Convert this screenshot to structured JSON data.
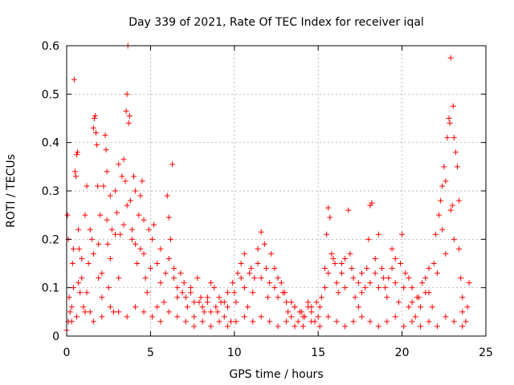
{
  "chart_data": {
    "type": "scatter",
    "title": "Day 339 of 2021, Rate Of TEC Index for receiver iqal",
    "xlabel": "GPS time / hours",
    "ylabel": "ROTI / TECUs",
    "xlim": [
      0,
      25
    ],
    "ylim": [
      0,
      0.6
    ],
    "x_ticks": [
      0,
      5,
      10,
      15,
      20,
      25
    ],
    "y_ticks": [
      0,
      0.1,
      0.2,
      0.3,
      0.4,
      0.5,
      0.6
    ],
    "x_tick_labels": [
      "0",
      "5",
      "10",
      "15",
      "20",
      "25"
    ],
    "y_tick_labels": [
      "0",
      "0.1",
      "0.2",
      "0.3",
      "0.4",
      "0.5",
      "0.6"
    ],
    "grid": true,
    "marker": "plus",
    "color": "#ff0000",
    "series": [
      {
        "points": [
          [
            0.0,
            0.012
          ],
          [
            0.05,
            0.25
          ],
          [
            0.1,
            0.2
          ],
          [
            0.15,
            0.08
          ],
          [
            0.2,
            0.05
          ],
          [
            0.3,
            0.03
          ],
          [
            0.35,
            0.15
          ],
          [
            0.4,
            0.1
          ],
          [
            0.45,
            0.53
          ],
          [
            0.5,
            0.34
          ],
          [
            0.55,
            0.33
          ],
          [
            0.6,
            0.375
          ],
          [
            0.65,
            0.38
          ],
          [
            0.7,
            0.22
          ],
          [
            0.75,
            0.18
          ],
          [
            0.8,
            0.09
          ],
          [
            0.9,
            0.12
          ],
          [
            1.0,
            0.06
          ],
          [
            1.1,
            0.25
          ],
          [
            1.2,
            0.31
          ],
          [
            1.3,
            0.15
          ],
          [
            1.4,
            0.05
          ],
          [
            1.5,
            0.2
          ],
          [
            1.6,
            0.43
          ],
          [
            1.65,
            0.45
          ],
          [
            1.7,
            0.455
          ],
          [
            1.75,
            0.42
          ],
          [
            1.8,
            0.395
          ],
          [
            1.85,
            0.31
          ],
          [
            1.9,
            0.12
          ],
          [
            2.0,
            0.25
          ],
          [
            2.1,
            0.08
          ],
          [
            2.2,
            0.31
          ],
          [
            2.3,
            0.415
          ],
          [
            2.35,
            0.385
          ],
          [
            2.4,
            0.34
          ],
          [
            2.45,
            0.19
          ],
          [
            2.5,
            0.1
          ],
          [
            2.6,
            0.29
          ],
          [
            2.7,
            0.22
          ],
          [
            2.8,
            0.05
          ],
          [
            2.9,
            0.3
          ],
          [
            3.0,
            0.255
          ],
          [
            3.1,
            0.355
          ],
          [
            3.2,
            0.21
          ],
          [
            3.3,
            0.33
          ],
          [
            3.4,
            0.365
          ],
          [
            3.5,
            0.32
          ],
          [
            3.55,
            0.465
          ],
          [
            3.6,
            0.5
          ],
          [
            3.65,
            0.6
          ],
          [
            3.7,
            0.44
          ],
          [
            3.75,
            0.455
          ],
          [
            3.8,
            0.28
          ],
          [
            3.9,
            0.22
          ],
          [
            4.0,
            0.33
          ],
          [
            4.1,
            0.3
          ],
          [
            4.2,
            0.15
          ],
          [
            4.3,
            0.25
          ],
          [
            4.4,
            0.29
          ],
          [
            4.5,
            0.32
          ],
          [
            4.6,
            0.17
          ],
          [
            4.7,
            0.12
          ],
          [
            4.8,
            0.09
          ],
          [
            5.0,
            0.14
          ],
          [
            5.2,
            0.23
          ],
          [
            5.4,
            0.06
          ],
          [
            5.6,
            0.18
          ],
          [
            5.8,
            0.07
          ],
          [
            6.0,
            0.29
          ],
          [
            6.1,
            0.245
          ],
          [
            6.2,
            0.2
          ],
          [
            6.3,
            0.355
          ],
          [
            6.4,
            0.12
          ],
          [
            6.6,
            0.08
          ],
          [
            6.8,
            0.13
          ],
          [
            7.0,
            0.11
          ],
          [
            7.2,
            0.06
          ],
          [
            7.4,
            0.09
          ],
          [
            7.6,
            0.04
          ],
          [
            7.8,
            0.12
          ],
          [
            8.0,
            0.08
          ],
          [
            8.2,
            0.05
          ],
          [
            8.4,
            0.07
          ],
          [
            8.6,
            0.11
          ],
          [
            8.8,
            0.1
          ],
          [
            9.0,
            0.05
          ],
          [
            9.2,
            0.07
          ],
          [
            9.4,
            0.04
          ],
          [
            9.6,
            0.06
          ],
          [
            9.8,
            0.03
          ],
          [
            10.0,
            0.09
          ],
          [
            10.2,
            0.13
          ],
          [
            10.4,
            0.15
          ],
          [
            10.6,
            0.17
          ],
          [
            10.8,
            0.06
          ],
          [
            11.0,
            0.14
          ],
          [
            11.2,
            0.12
          ],
          [
            11.4,
            0.18
          ],
          [
            11.6,
            0.215
          ],
          [
            11.8,
            0.19
          ],
          [
            12.0,
            0.08
          ],
          [
            12.2,
            0.17
          ],
          [
            12.4,
            0.14
          ],
          [
            12.6,
            0.12
          ],
          [
            12.8,
            0.11
          ],
          [
            13.0,
            0.09
          ],
          [
            13.2,
            0.05
          ],
          [
            13.4,
            0.04
          ],
          [
            13.6,
            0.06
          ],
          [
            13.8,
            0.03
          ],
          [
            14.0,
            0.05
          ],
          [
            14.2,
            0.04
          ],
          [
            14.4,
            0.07
          ],
          [
            14.6,
            0.06
          ],
          [
            14.8,
            0.03
          ],
          [
            15.0,
            0.04
          ],
          [
            15.2,
            0.08
          ],
          [
            15.4,
            0.1
          ],
          [
            15.5,
            0.21
          ],
          [
            15.6,
            0.265
          ],
          [
            15.7,
            0.245
          ],
          [
            15.8,
            0.17
          ],
          [
            16.0,
            0.15
          ],
          [
            16.2,
            0.09
          ],
          [
            16.4,
            0.13
          ],
          [
            16.6,
            0.16
          ],
          [
            16.8,
            0.26
          ],
          [
            17.0,
            0.14
          ],
          [
            17.2,
            0.08
          ],
          [
            17.4,
            0.06
          ],
          [
            17.6,
            0.13
          ],
          [
            17.8,
            0.1
          ],
          [
            18.0,
            0.2
          ],
          [
            18.1,
            0.27
          ],
          [
            18.2,
            0.275
          ],
          [
            18.4,
            0.16
          ],
          [
            18.6,
            0.21
          ],
          [
            18.8,
            0.14
          ],
          [
            19.0,
            0.1
          ],
          [
            19.2,
            0.12
          ],
          [
            19.4,
            0.18
          ],
          [
            19.6,
            0.16
          ],
          [
            19.8,
            0.07
          ],
          [
            20.0,
            0.21
          ],
          [
            20.2,
            0.13
          ],
          [
            20.4,
            0.06
          ],
          [
            20.6,
            0.1
          ],
          [
            20.8,
            0.04
          ],
          [
            21.0,
            0.08
          ],
          [
            21.2,
            0.11
          ],
          [
            21.4,
            0.12
          ],
          [
            21.6,
            0.14
          ],
          [
            21.8,
            0.06
          ],
          [
            22.0,
            0.21
          ],
          [
            22.2,
            0.25
          ],
          [
            22.3,
            0.28
          ],
          [
            22.4,
            0.31
          ],
          [
            22.5,
            0.35
          ],
          [
            22.6,
            0.32
          ],
          [
            22.7,
            0.41
          ],
          [
            22.8,
            0.45
          ],
          [
            22.85,
            0.44
          ],
          [
            22.9,
            0.575
          ],
          [
            23.0,
            0.27
          ],
          [
            23.05,
            0.475
          ],
          [
            23.1,
            0.41
          ],
          [
            23.2,
            0.38
          ],
          [
            23.3,
            0.35
          ],
          [
            23.4,
            0.28
          ],
          [
            23.5,
            0.12
          ],
          [
            23.6,
            0.05
          ],
          [
            23.8,
            0.03
          ],
          [
            24.0,
            0.11
          ],
          [
            0.3,
            0.06
          ],
          [
            0.7,
            0.11
          ],
          [
            1.2,
            0.09
          ],
          [
            1.6,
            0.17
          ],
          [
            2.1,
            0.13
          ],
          [
            2.6,
            0.16
          ],
          [
            3.1,
            0.12
          ],
          [
            3.6,
            0.27
          ],
          [
            4.1,
            0.19
          ],
          [
            4.6,
            0.24
          ],
          [
            5.1,
            0.2
          ],
          [
            5.6,
            0.11
          ],
          [
            6.1,
            0.16
          ],
          [
            6.6,
            0.1
          ],
          [
            7.1,
            0.08
          ],
          [
            7.6,
            0.07
          ],
          [
            8.1,
            0.06
          ],
          [
            8.6,
            0.05
          ],
          [
            9.1,
            0.08
          ],
          [
            9.6,
            0.09
          ],
          [
            10.1,
            0.07
          ],
          [
            10.6,
            0.1
          ],
          [
            11.1,
            0.09
          ],
          [
            11.6,
            0.12
          ],
          [
            12.1,
            0.11
          ],
          [
            12.6,
            0.08
          ],
          [
            13.1,
            0.07
          ],
          [
            13.6,
            0.06
          ],
          [
            14.1,
            0.04
          ],
          [
            14.6,
            0.05
          ],
          [
            15.1,
            0.06
          ],
          [
            15.6,
            0.13
          ],
          [
            16.1,
            0.11
          ],
          [
            16.6,
            0.1
          ],
          [
            17.1,
            0.12
          ],
          [
            17.6,
            0.09
          ],
          [
            18.1,
            0.11
          ],
          [
            18.6,
            0.1
          ],
          [
            19.1,
            0.08
          ],
          [
            19.6,
            0.11
          ],
          [
            20.1,
            0.1
          ],
          [
            20.6,
            0.07
          ],
          [
            21.1,
            0.06
          ],
          [
            21.6,
            0.09
          ],
          [
            22.1,
            0.13
          ],
          [
            22.6,
            0.17
          ],
          [
            23.1,
            0.2
          ],
          [
            23.6,
            0.08
          ],
          [
            0.1,
            0.03
          ],
          [
            0.6,
            0.04
          ],
          [
            1.1,
            0.05
          ],
          [
            1.6,
            0.03
          ],
          [
            2.1,
            0.04
          ],
          [
            2.6,
            0.06
          ],
          [
            3.1,
            0.05
          ],
          [
            3.6,
            0.04
          ],
          [
            4.1,
            0.06
          ],
          [
            4.6,
            0.05
          ],
          [
            5.1,
            0.04
          ],
          [
            5.6,
            0.03
          ],
          [
            6.1,
            0.05
          ],
          [
            6.6,
            0.04
          ],
          [
            7.1,
            0.03
          ],
          [
            7.6,
            0.02
          ],
          [
            8.1,
            0.03
          ],
          [
            8.6,
            0.02
          ],
          [
            9.1,
            0.03
          ],
          [
            9.6,
            0.02
          ],
          [
            10.1,
            0.03
          ],
          [
            10.6,
            0.04
          ],
          [
            11.1,
            0.03
          ],
          [
            11.6,
            0.04
          ],
          [
            12.1,
            0.03
          ],
          [
            12.6,
            0.02
          ],
          [
            13.1,
            0.03
          ],
          [
            13.6,
            0.02
          ],
          [
            14.1,
            0.02
          ],
          [
            14.6,
            0.03
          ],
          [
            15.1,
            0.02
          ],
          [
            15.6,
            0.04
          ],
          [
            16.1,
            0.03
          ],
          [
            16.6,
            0.02
          ],
          [
            17.1,
            0.03
          ],
          [
            17.6,
            0.04
          ],
          [
            18.1,
            0.03
          ],
          [
            18.6,
            0.02
          ],
          [
            19.1,
            0.03
          ],
          [
            19.6,
            0.04
          ],
          [
            20.1,
            0.02
          ],
          [
            20.6,
            0.03
          ],
          [
            21.1,
            0.02
          ],
          [
            21.6,
            0.03
          ],
          [
            22.1,
            0.02
          ],
          [
            22.6,
            0.04
          ],
          [
            23.1,
            0.03
          ],
          [
            23.6,
            0.02
          ],
          [
            0.4,
            0.18
          ],
          [
            0.9,
            0.16
          ],
          [
            1.4,
            0.22
          ],
          [
            1.9,
            0.19
          ],
          [
            2.4,
            0.24
          ],
          [
            2.9,
            0.21
          ],
          [
            3.4,
            0.23
          ],
          [
            3.9,
            0.2
          ],
          [
            4.4,
            0.18
          ],
          [
            4.9,
            0.22
          ],
          [
            5.4,
            0.15
          ],
          [
            5.9,
            0.13
          ],
          [
            6.4,
            0.14
          ],
          [
            6.9,
            0.09
          ],
          [
            7.4,
            0.1
          ],
          [
            7.9,
            0.07
          ],
          [
            8.4,
            0.08
          ],
          [
            8.9,
            0.06
          ],
          [
            9.4,
            0.07
          ],
          [
            9.9,
            0.11
          ],
          [
            10.4,
            0.12
          ],
          [
            10.9,
            0.13
          ],
          [
            11.4,
            0.15
          ],
          [
            11.9,
            0.14
          ],
          [
            12.4,
            0.1
          ],
          [
            12.9,
            0.09
          ],
          [
            13.4,
            0.07
          ],
          [
            13.9,
            0.05
          ],
          [
            14.4,
            0.06
          ],
          [
            14.9,
            0.07
          ],
          [
            15.4,
            0.14
          ],
          [
            15.9,
            0.16
          ],
          [
            16.4,
            0.15
          ],
          [
            16.9,
            0.17
          ],
          [
            17.4,
            0.11
          ],
          [
            17.9,
            0.14
          ],
          [
            18.4,
            0.13
          ],
          [
            18.9,
            0.12
          ],
          [
            19.4,
            0.14
          ],
          [
            19.9,
            0.15
          ],
          [
            20.4,
            0.12
          ],
          [
            20.9,
            0.08
          ],
          [
            21.4,
            0.09
          ],
          [
            21.9,
            0.15
          ],
          [
            22.4,
            0.22
          ],
          [
            22.9,
            0.26
          ],
          [
            23.4,
            0.18
          ],
          [
            23.9,
            0.06
          ]
        ]
      }
    ]
  }
}
